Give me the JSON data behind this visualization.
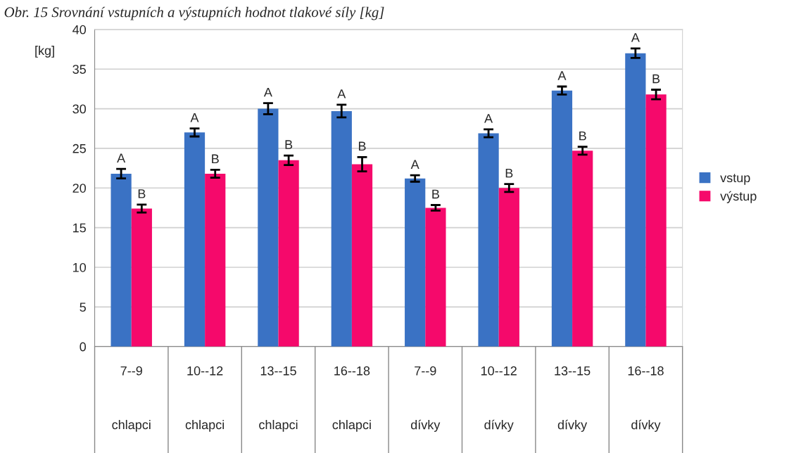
{
  "chart_data": {
    "type": "bar",
    "title": "Obr. 15 Srovnání vstupních a výstupních hodnot tlakové síly [kg]",
    "ylabel": "[kg]",
    "categories": [
      "7--9\nchlapci",
      "10--12\nchlapci",
      "13--15\nchlapci",
      "16--18\nchlapci",
      "7--9\ndívky",
      "10--12\ndívky",
      "13--15\ndívky",
      "16--18\ndívky"
    ],
    "series": [
      {
        "name": "vstup",
        "color": "#3a72c4",
        "values": [
          21.8,
          27.0,
          30.0,
          29.7,
          21.2,
          26.9,
          32.3,
          37.0
        ],
        "errors": [
          0.6,
          0.5,
          0.7,
          0.8,
          0.4,
          0.5,
          0.5,
          0.6
        ],
        "value_labels": [
          "A",
          "A",
          "A",
          "A",
          "A",
          "A",
          "A",
          "A"
        ]
      },
      {
        "name": "výstup",
        "color": "#f5096b",
        "values": [
          17.4,
          21.8,
          23.5,
          23.0,
          17.5,
          20.0,
          24.7,
          31.8
        ],
        "errors": [
          0.5,
          0.5,
          0.6,
          0.9,
          0.35,
          0.5,
          0.5,
          0.6
        ],
        "value_labels": [
          "B",
          "B",
          "B",
          "B",
          "B",
          "B",
          "B",
          "B"
        ]
      }
    ],
    "ylim": [
      0,
      40
    ],
    "yticks": [
      0,
      5,
      10,
      15,
      20,
      25,
      30,
      35,
      40
    ],
    "grid": "y",
    "legend": "right"
  }
}
